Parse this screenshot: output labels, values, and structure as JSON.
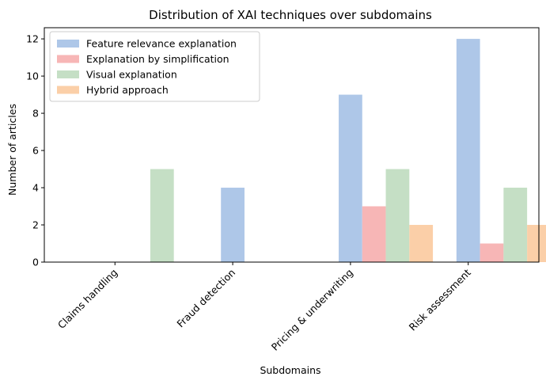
{
  "chart_data": {
    "type": "bar",
    "title": "Distribution of XAI techniques over subdomains",
    "xlabel": "Subdomains",
    "ylabel": "Number of articles",
    "categories": [
      "Claims handling",
      "Fraud detection",
      "Pricing & underwriting",
      "Risk assessment"
    ],
    "series": [
      {
        "name": "Feature relevance explanation",
        "color": "#aec7e8",
        "values": [
          0,
          4,
          9,
          12
        ]
      },
      {
        "name": "Explanation by simplification",
        "color": "#f7b6b6",
        "values": [
          0,
          0,
          3,
          1
        ]
      },
      {
        "name": "Visual explanation",
        "color": "#c5dfc5",
        "values": [
          5,
          0,
          5,
          4
        ]
      },
      {
        "name": "Hybrid approach",
        "color": "#fbcfa8",
        "values": [
          0,
          0,
          2,
          2
        ]
      }
    ],
    "ylim": [
      0,
      12.6
    ],
    "yticks": [
      0,
      2,
      4,
      6,
      8,
      10,
      12
    ],
    "grid": false,
    "legend_position": "top-left"
  }
}
